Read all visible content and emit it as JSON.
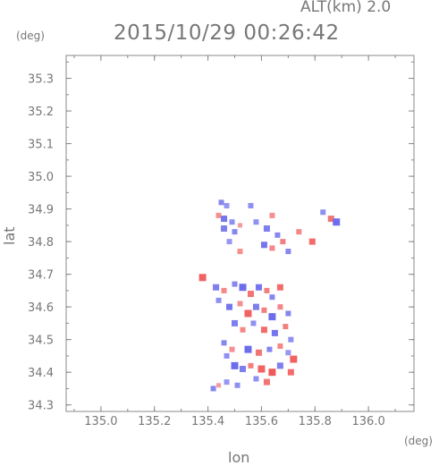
{
  "header": {
    "altitude_label": "ALT(km) 2.0",
    "timestamp": "2015/10/29 00:26:42"
  },
  "chart_data": {
    "type": "heatmap",
    "title": "2015/10/29 00:26:42",
    "xlabel": "lon",
    "ylabel": "lat",
    "x_unit": "(deg)",
    "y_unit": "(deg)",
    "xlim": [
      134.87,
      136.17
    ],
    "ylim": [
      34.28,
      35.37
    ],
    "x_ticks": [
      "135.0",
      "135.2",
      "135.4",
      "135.6",
      "135.8",
      "136.0"
    ],
    "y_ticks": [
      "34.3",
      "34.4",
      "34.5",
      "34.6",
      "34.7",
      "34.8",
      "34.9",
      "35.0",
      "35.1",
      "35.2",
      "35.3"
    ],
    "grid": false,
    "colors": {
      "positive": "#f07070",
      "negative": "#7070f0",
      "frame": "#888888"
    },
    "note_values": "scattered echo cells; value sign shown by red (+) / blue (-)",
    "cells": [
      [
        135.45,
        34.92,
        -0.6
      ],
      [
        135.47,
        34.91,
        -0.4
      ],
      [
        135.56,
        34.91,
        -0.5
      ],
      [
        135.44,
        34.88,
        0.4
      ],
      [
        135.46,
        34.87,
        -0.8
      ],
      [
        135.49,
        34.86,
        -0.5
      ],
      [
        135.52,
        34.85,
        0.3
      ],
      [
        135.46,
        34.84,
        -0.7
      ],
      [
        135.5,
        34.83,
        -0.6
      ],
      [
        135.58,
        34.86,
        -0.5
      ],
      [
        135.62,
        34.84,
        -0.7
      ],
      [
        135.64,
        34.88,
        0.4
      ],
      [
        135.66,
        34.82,
        -0.6
      ],
      [
        135.68,
        34.8,
        0.6
      ],
      [
        135.61,
        34.79,
        -0.8
      ],
      [
        135.64,
        34.78,
        0.5
      ],
      [
        135.7,
        34.77,
        -0.6
      ],
      [
        135.74,
        34.83,
        0.5
      ],
      [
        135.79,
        34.8,
        0.8
      ],
      [
        135.83,
        34.89,
        -0.5
      ],
      [
        135.86,
        34.87,
        0.7
      ],
      [
        135.88,
        34.86,
        -0.9
      ],
      [
        135.48,
        34.8,
        -0.4
      ],
      [
        135.52,
        34.77,
        0.4
      ],
      [
        135.38,
        34.69,
        0.9
      ],
      [
        135.43,
        34.66,
        -0.7
      ],
      [
        135.46,
        34.65,
        0.5
      ],
      [
        135.5,
        34.67,
        -0.6
      ],
      [
        135.53,
        34.66,
        -0.9
      ],
      [
        135.56,
        34.64,
        0.7
      ],
      [
        135.59,
        34.66,
        -0.8
      ],
      [
        135.62,
        34.65,
        0.6
      ],
      [
        135.64,
        34.63,
        -0.6
      ],
      [
        135.67,
        34.66,
        0.8
      ],
      [
        135.44,
        34.62,
        -0.5
      ],
      [
        135.48,
        34.6,
        -0.8
      ],
      [
        135.52,
        34.61,
        0.4
      ],
      [
        135.55,
        34.58,
        0.9
      ],
      [
        135.58,
        34.6,
        -0.7
      ],
      [
        135.61,
        34.59,
        0.6
      ],
      [
        135.64,
        34.57,
        -0.9
      ],
      [
        135.67,
        34.6,
        0.5
      ],
      [
        135.7,
        34.58,
        -0.6
      ],
      [
        135.5,
        34.55,
        -0.7
      ],
      [
        135.53,
        34.53,
        0.5
      ],
      [
        135.57,
        34.55,
        -0.5
      ],
      [
        135.61,
        34.53,
        0.8
      ],
      [
        135.65,
        34.52,
        -0.8
      ],
      [
        135.69,
        34.54,
        0.6
      ],
      [
        135.71,
        34.5,
        -0.5
      ],
      [
        135.46,
        34.49,
        -0.6
      ],
      [
        135.49,
        34.47,
        0.4
      ],
      [
        135.55,
        34.47,
        -0.9
      ],
      [
        135.59,
        34.46,
        0.7
      ],
      [
        135.63,
        34.47,
        -0.6
      ],
      [
        135.67,
        34.48,
        0.5
      ],
      [
        135.7,
        34.46,
        -0.4
      ],
      [
        135.5,
        34.42,
        -0.9
      ],
      [
        135.53,
        34.41,
        -0.7
      ],
      [
        135.56,
        34.42,
        0.6
      ],
      [
        135.6,
        34.41,
        0.9
      ],
      [
        135.64,
        34.4,
        1.0
      ],
      [
        135.67,
        34.42,
        -0.7
      ],
      [
        135.71,
        34.4,
        0.8
      ],
      [
        135.72,
        34.44,
        0.9
      ],
      [
        135.58,
        34.38,
        -0.5
      ],
      [
        135.62,
        34.37,
        0.7
      ],
      [
        135.47,
        34.37,
        -0.4
      ],
      [
        135.42,
        34.35,
        -0.6
      ],
      [
        135.44,
        34.36,
        0.3
      ],
      [
        135.51,
        34.36,
        -0.5
      ],
      [
        135.47,
        34.45,
        -0.5
      ]
    ]
  }
}
